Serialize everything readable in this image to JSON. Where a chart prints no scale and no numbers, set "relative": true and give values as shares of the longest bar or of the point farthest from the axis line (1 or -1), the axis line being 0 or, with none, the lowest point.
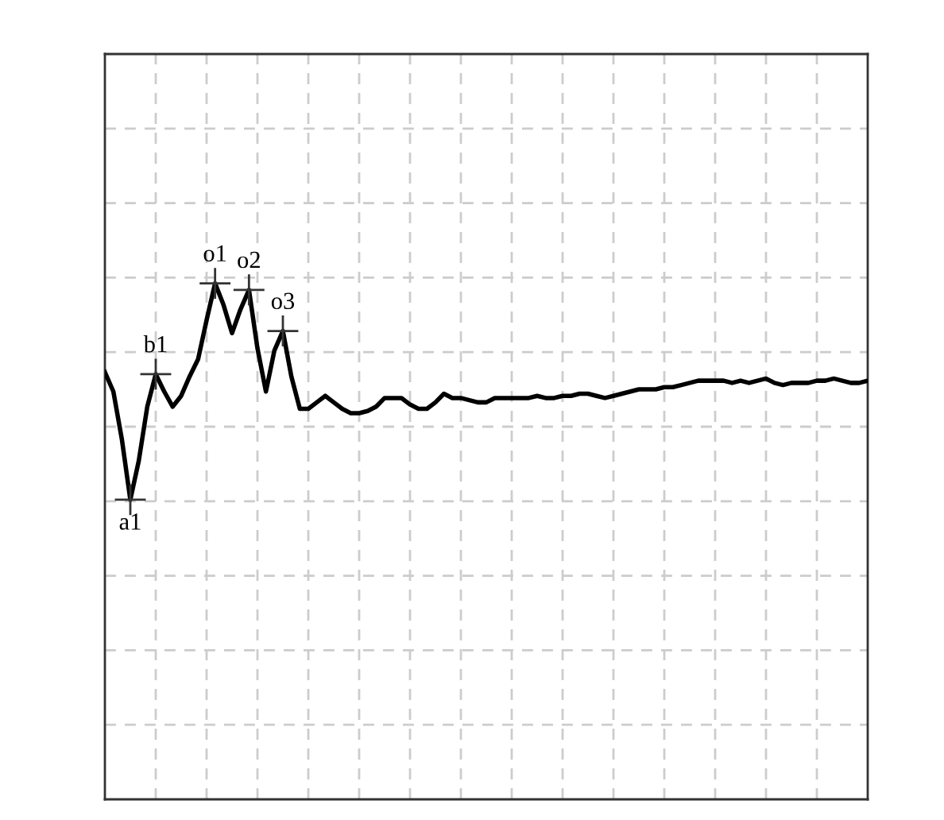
{
  "chart_data": {
    "type": "line",
    "relative": true,
    "grid": true,
    "marker": "none",
    "line_style": "solid",
    "categories": [
      null,
      null,
      null,
      null,
      null,
      null,
      null,
      null,
      null,
      null,
      null,
      null,
      null,
      null,
      null,
      null,
      null,
      null,
      null,
      null,
      null,
      null,
      null,
      null,
      null,
      null,
      null,
      null,
      null,
      null,
      null,
      null,
      null,
      null,
      null,
      null,
      null,
      null,
      null,
      null,
      null,
      null,
      null,
      null,
      null,
      null,
      null,
      null,
      null,
      null,
      null,
      null,
      null,
      null,
      null,
      null,
      null,
      null,
      null,
      null,
      null,
      null,
      null,
      null,
      null,
      null,
      null,
      null,
      null,
      null,
      null,
      null,
      null,
      null,
      null,
      null,
      null,
      null,
      null,
      null,
      null,
      null,
      null,
      null,
      null,
      null,
      null,
      null,
      null,
      null,
      null
    ],
    "series": [
      {
        "color": "#000000",
        "values": [
          0.59,
          0.5,
          0.28,
          0,
          0.18,
          0.43,
          0.58,
          0.5,
          0.43,
          0.48,
          0.57,
          0.65,
          0.83,
          1,
          0.9,
          0.77,
          0.88,
          0.97,
          0.7,
          0.5,
          0.69,
          0.78,
          0.57,
          0.42,
          0.42,
          0.45,
          0.48,
          0.45,
          0.42,
          0.4,
          0.4,
          0.41,
          0.43,
          0.47,
          0.47,
          0.47,
          0.44,
          0.42,
          0.42,
          0.45,
          0.49,
          0.47,
          0.47,
          0.46,
          0.45,
          0.45,
          0.47,
          0.47,
          0.47,
          0.47,
          0.47,
          0.48,
          0.47,
          0.47,
          0.48,
          0.48,
          0.49,
          0.49,
          0.48,
          0.47,
          0.48,
          0.49,
          0.5,
          0.51,
          0.51,
          0.51,
          0.52,
          0.52,
          0.53,
          0.54,
          0.55,
          0.55,
          0.55,
          0.55,
          0.54,
          0.55,
          0.54,
          0.55,
          0.56,
          0.54,
          0.53,
          0.54,
          0.54,
          0.54,
          0.55,
          0.55,
          0.56,
          0.55,
          0.54,
          0.54,
          0.55
        ]
      }
    ],
    "annotations": [
      {
        "text": "a1",
        "y": 0
      },
      {
        "text": "b1",
        "y": 0.58
      },
      {
        "text": "o1",
        "y": 1
      },
      {
        "text": "o2",
        "y": 0.97
      },
      {
        "text": "o3",
        "y": 0.78
      }
    ]
  }
}
